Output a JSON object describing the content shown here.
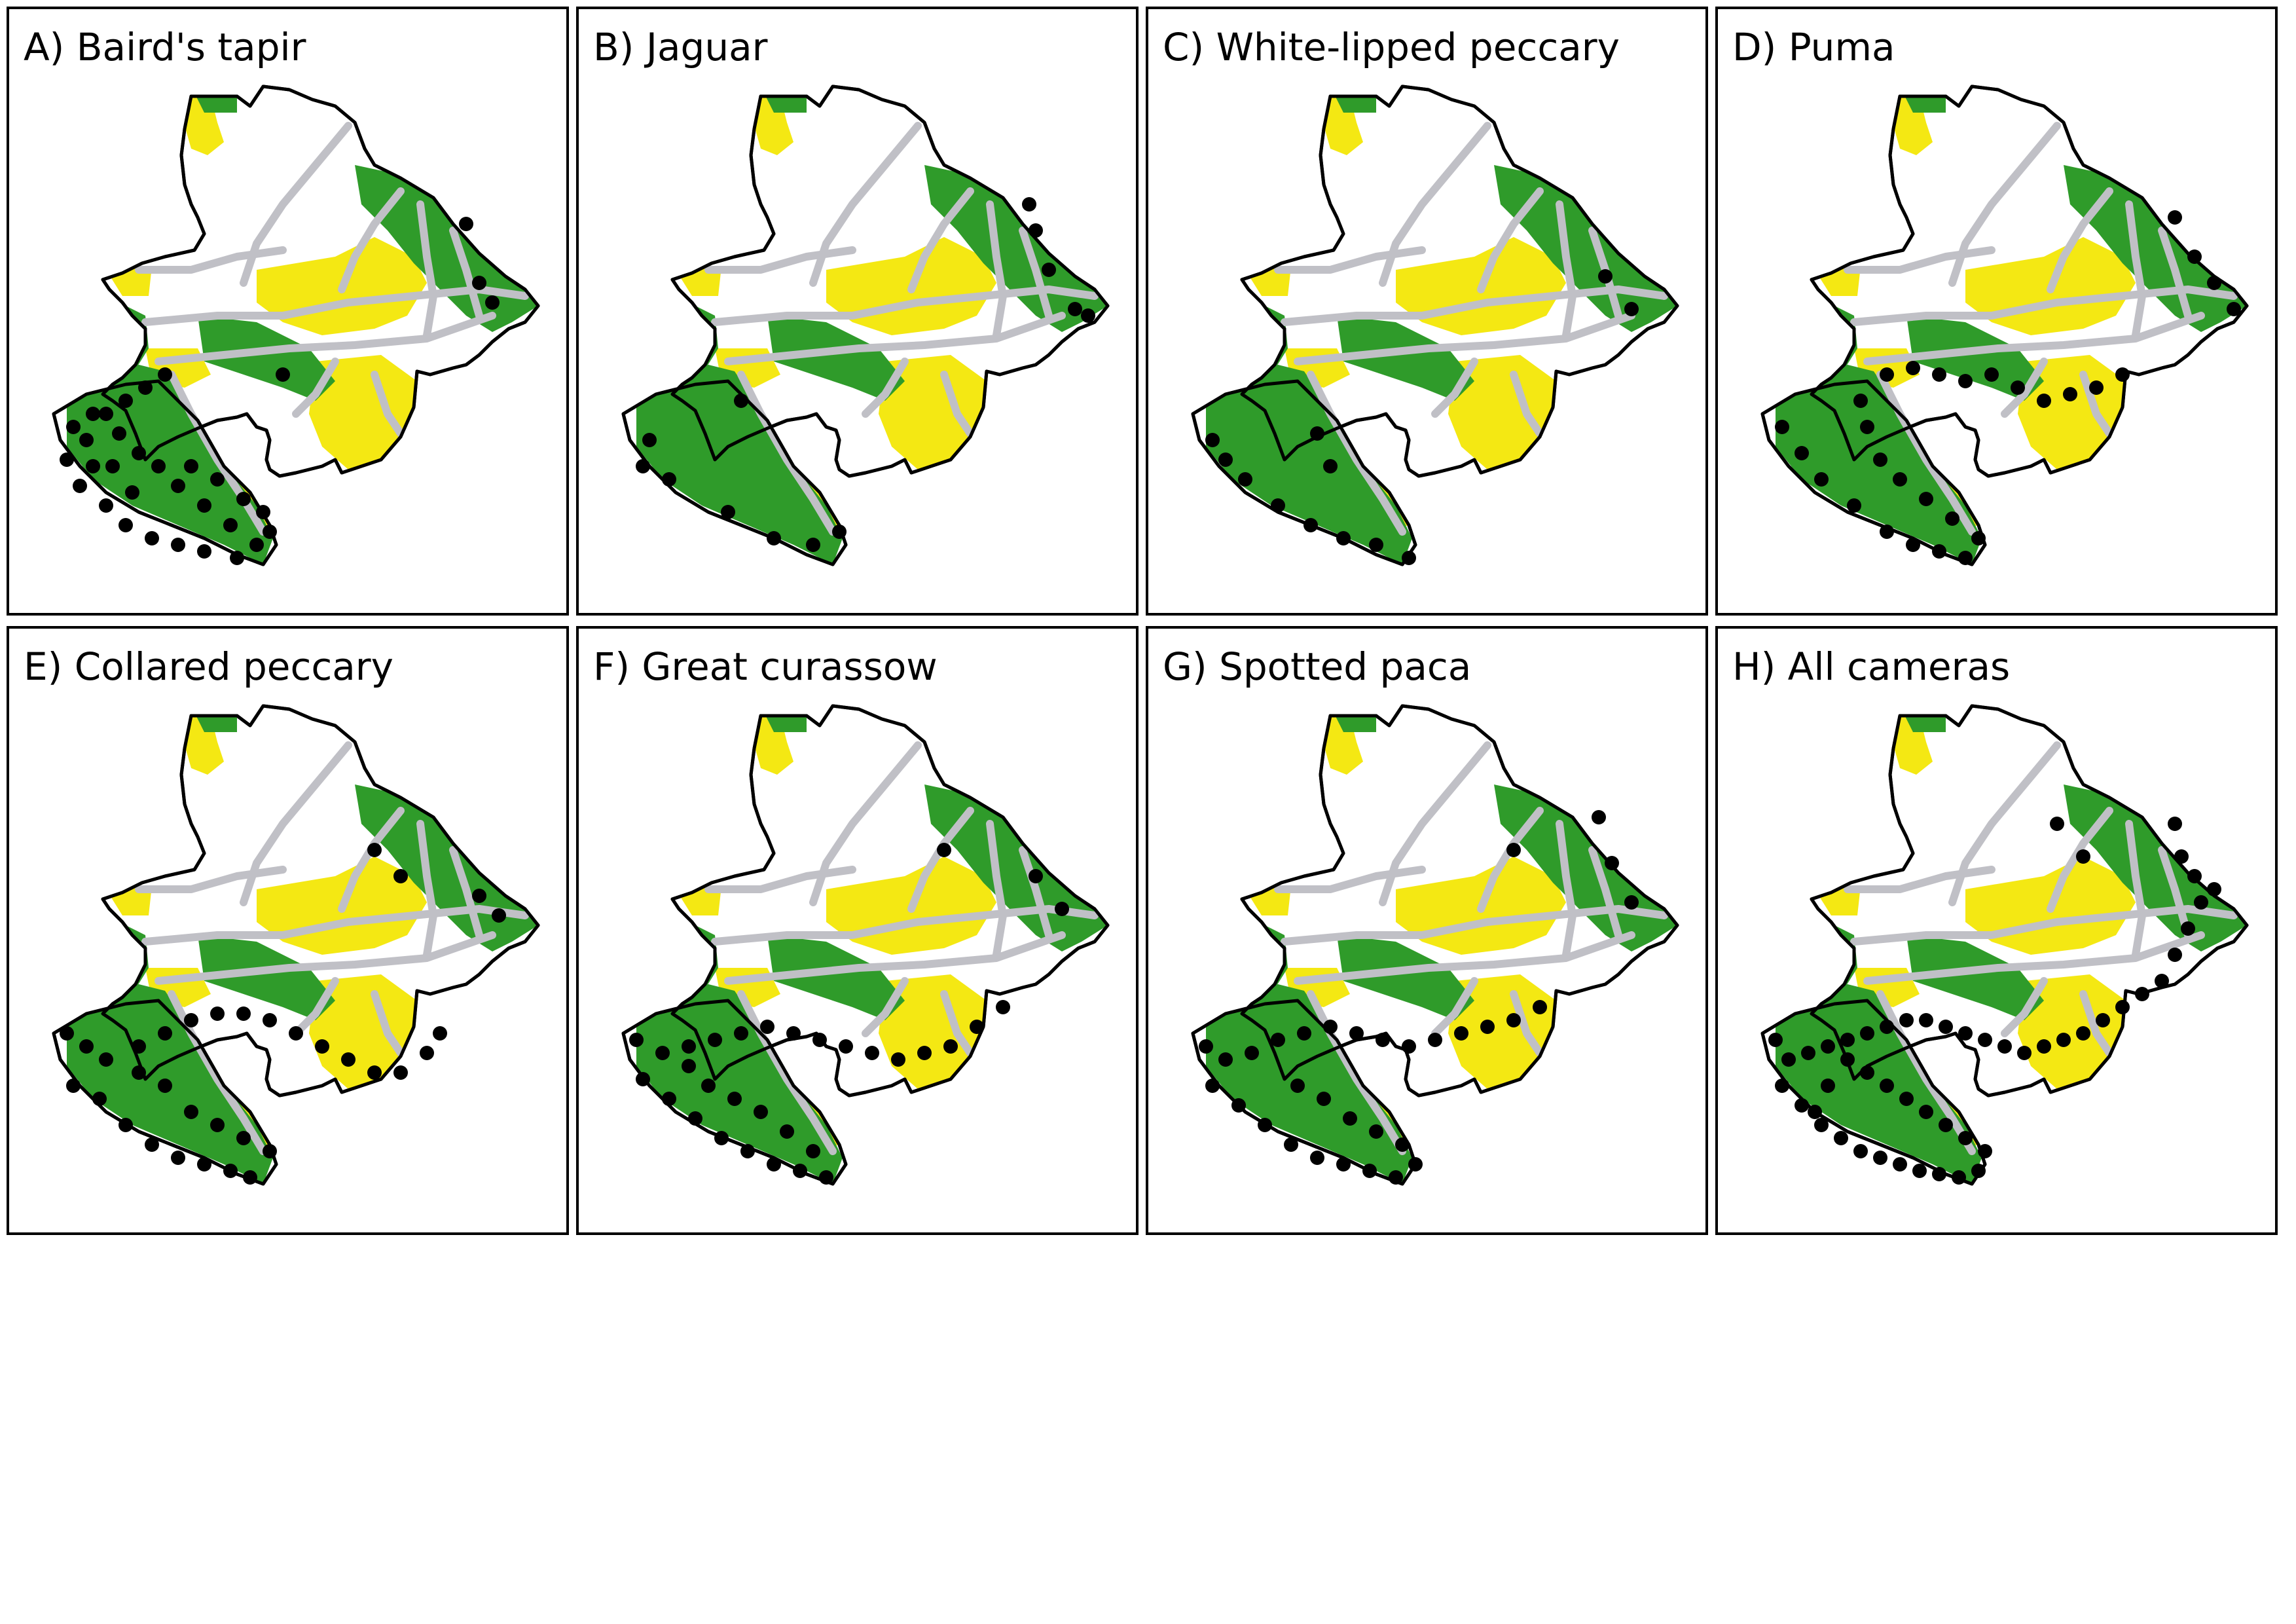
{
  "colors": {
    "forest": "#2f9b2a",
    "yellow_zone": "#f4e813",
    "roads": "#c0c0c6",
    "camera": "#000000",
    "outline": "#000000"
  },
  "panels": [
    {
      "title": "A) Baird's tapir",
      "species": "bairds-tapir"
    },
    {
      "title": "B) Jaguar",
      "species": "jaguar"
    },
    {
      "title": "C) White-lipped peccary",
      "species": "white-lipped-peccary"
    },
    {
      "title": "D) Puma",
      "species": "puma"
    },
    {
      "title": "E) Collared peccary",
      "species": "collared-peccary"
    },
    {
      "title": "F) Great curassow",
      "species": "great-curassow"
    },
    {
      "title": "G) Spotted paca",
      "species": "spotted-paca"
    },
    {
      "title": "H) All cameras",
      "species": "all-cameras"
    }
  ]
}
